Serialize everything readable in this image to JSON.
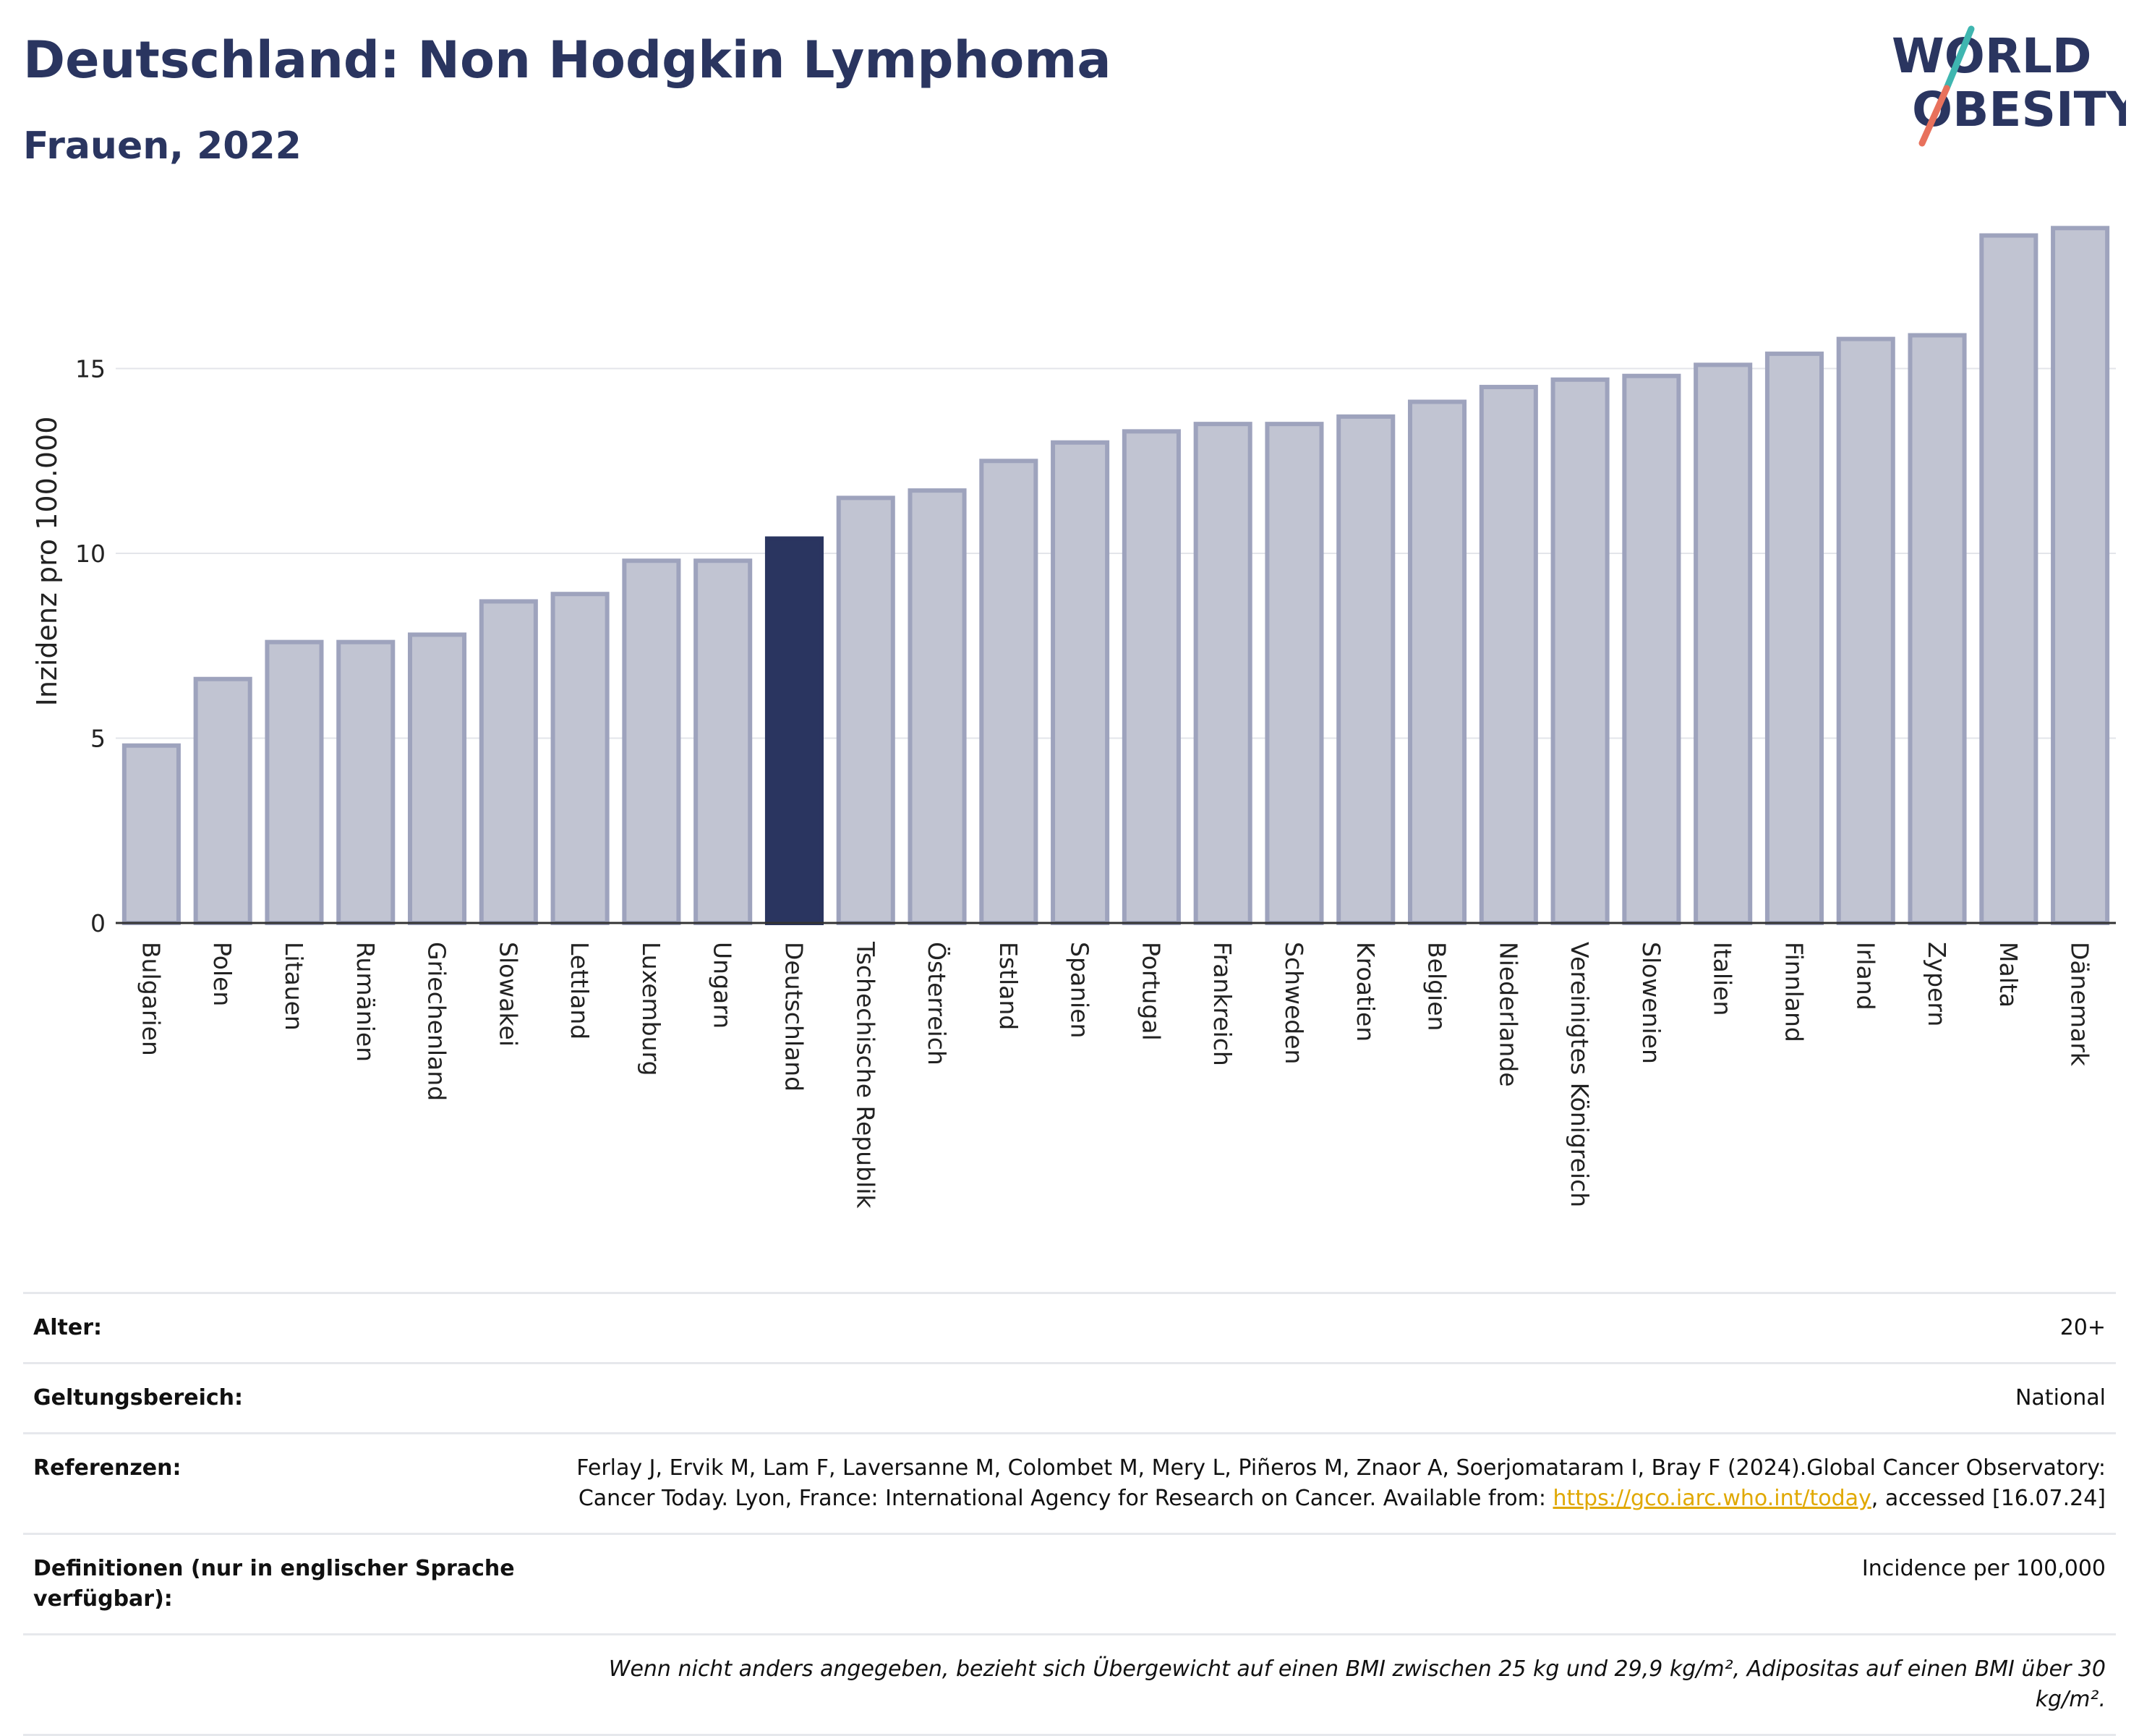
{
  "header": {
    "title": "Deutschland: Non Hodgkin Lymphoma",
    "subtitle": "Frauen, 2022"
  },
  "logo": {
    "line1": "WORLD",
    "line2": "OBESITY",
    "name": "world-obesity-logo"
  },
  "colors": {
    "highlight": "#2a3560",
    "bar_fill": "#c1c4d2",
    "bar_stroke": "#9ea3bd",
    "link": "#e0a800"
  },
  "chart_data": {
    "type": "bar",
    "ylabel": "Inzidenz pro 100.000",
    "xlabel": "",
    "ylim": [
      0,
      19
    ],
    "yticks": [
      0,
      5,
      10,
      15
    ],
    "grid": true,
    "highlight_category": "Deutschland",
    "categories": [
      "Bulgarien",
      "Polen",
      "Litauen",
      "Rumänien",
      "Griechenland",
      "Slowakei",
      "Lettland",
      "Luxemburg",
      "Ungarn",
      "Deutschland",
      "Tschechische Republik",
      "Österreich",
      "Estland",
      "Spanien",
      "Portugal",
      "Frankreich",
      "Schweden",
      "Kroatien",
      "Belgien",
      "Niederlande",
      "Vereinigtes Königreich",
      "Slowenien",
      "Italien",
      "Finnland",
      "Irland",
      "Zypern",
      "Malta",
      "Dänemark"
    ],
    "values": [
      4.8,
      6.6,
      7.6,
      7.6,
      7.8,
      8.7,
      8.9,
      9.8,
      9.8,
      10.4,
      11.5,
      11.7,
      12.5,
      13.0,
      13.3,
      13.5,
      13.5,
      13.7,
      14.1,
      14.5,
      14.7,
      14.8,
      15.1,
      15.4,
      15.8,
      15.9,
      18.6,
      18.8
    ]
  },
  "meta": {
    "rows": [
      {
        "label": "Alter:",
        "value": "20+"
      },
      {
        "label": "Geltungsbereich:",
        "value": "National"
      },
      {
        "label": "Referenzen:",
        "value_pre": "Ferlay J, Ervik M, Lam F, Laversanne M, Colombet M, Mery L, Piñeros M, Znaor A, Soerjomataram I, Bray F (2024).Global Cancer Observatory: Cancer Today. Lyon, France: International Agency for Research on Cancer. Available from: ",
        "link_text": "https://gco.iarc.who.int/today",
        "value_post": ", accessed [16.07.24]"
      },
      {
        "label": "Definitionen (nur in englischer Sprache verfügbar):",
        "value": "Incidence per 100,000"
      }
    ],
    "note": "Wenn nicht anders angegeben, bezieht sich Übergewicht auf einen BMI zwischen 25 kg und 29,9 kg/m², Adipositas auf einen BMI über 30 kg/m²."
  }
}
